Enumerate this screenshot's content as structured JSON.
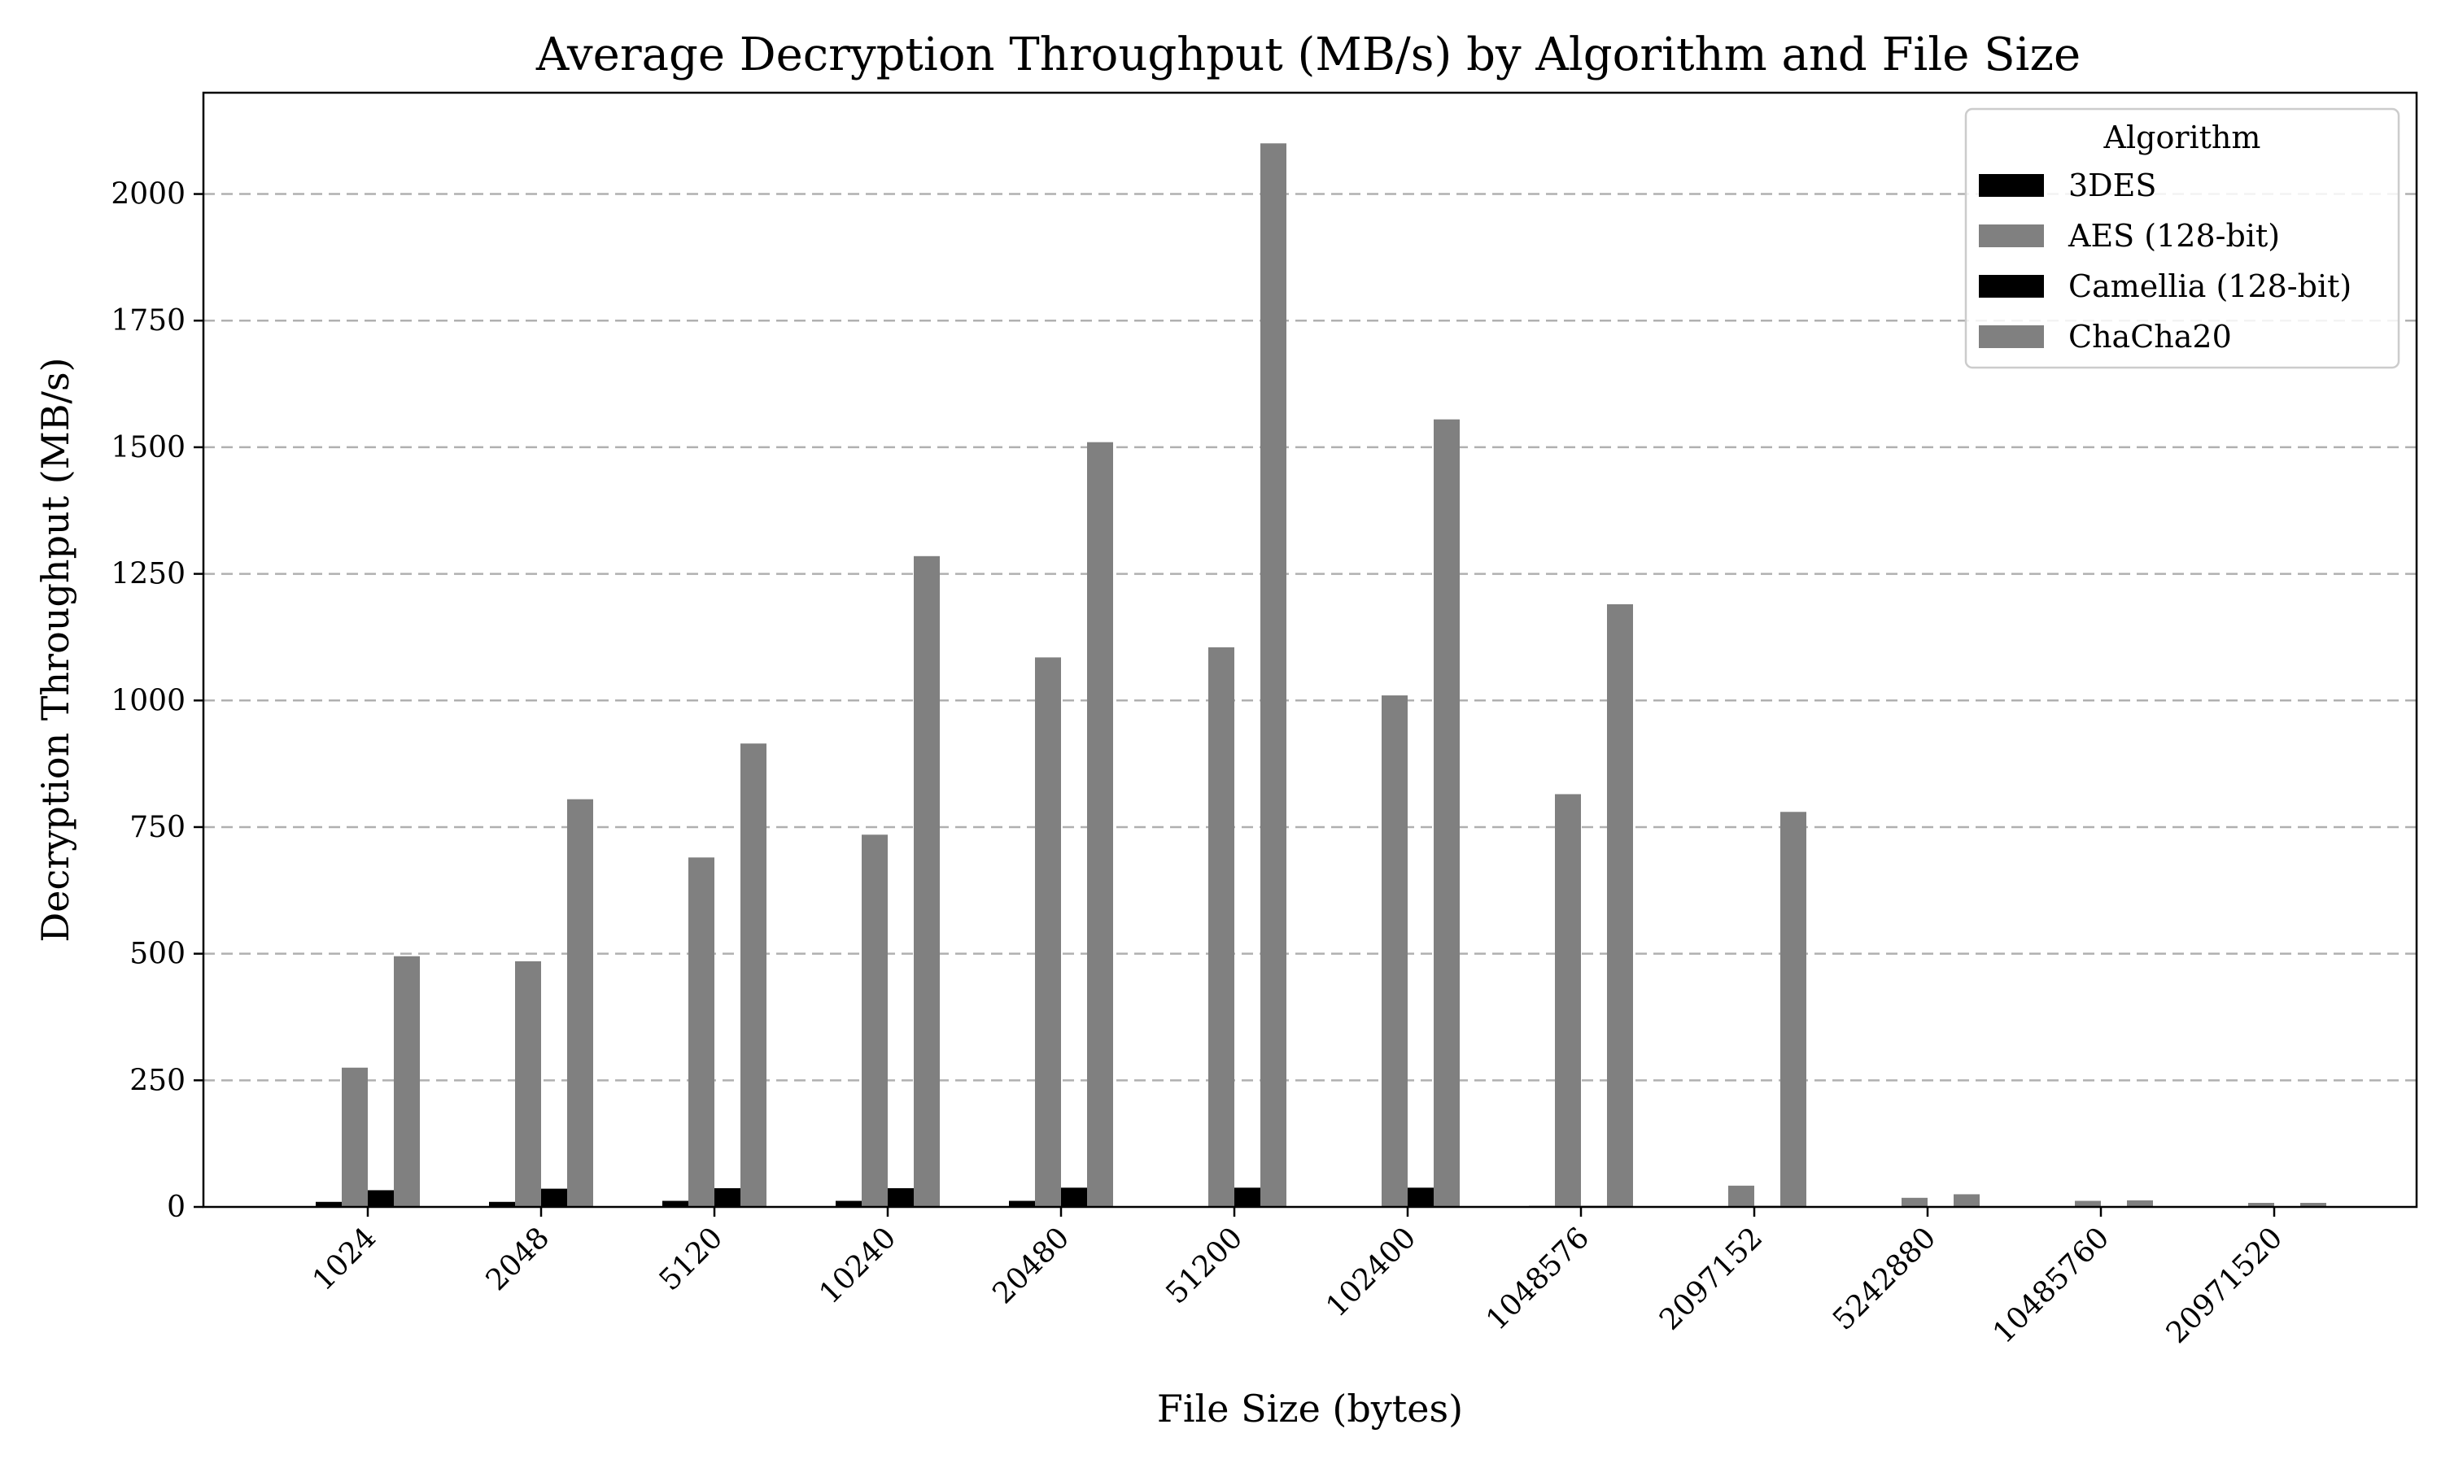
{
  "chart_data": {
    "type": "bar",
    "title": "Average Decryption Throughput (MB/s) by Algorithm and File Size",
    "xlabel": "File Size (bytes)",
    "ylabel": "Decryption Throughput (MB/s)",
    "ylim": [
      0,
      2200
    ],
    "yticks": [
      0,
      250,
      500,
      750,
      1000,
      1250,
      1500,
      1750,
      2000
    ],
    "grid": "y-dashed",
    "legend": {
      "title": "Algorithm",
      "placement": "top-right"
    },
    "categories": [
      "1024",
      "2048",
      "5120",
      "10240",
      "20480",
      "51200",
      "102400",
      "1048576",
      "2097152",
      "5242880",
      "10485760",
      "20971520"
    ],
    "series": [
      {
        "name": "3DES",
        "color": "#000000",
        "values": [
          10,
          10,
          12,
          12,
          12,
          0,
          0,
          2,
          0,
          0,
          0,
          1
        ]
      },
      {
        "name": "AES (128-bit)",
        "color": "#808080",
        "values": [
          275,
          485,
          690,
          735,
          1085,
          1105,
          1010,
          815,
          42,
          18,
          12,
          8
        ]
      },
      {
        "name": "Camellia (128-bit)",
        "color": "#000000",
        "values": [
          33,
          36,
          37,
          37,
          38,
          38,
          38,
          2,
          2,
          0,
          0,
          1
        ]
      },
      {
        "name": "ChaCha20",
        "color": "#808080",
        "values": [
          495,
          805,
          915,
          1285,
          1510,
          2100,
          1555,
          1190,
          780,
          25,
          13,
          8
        ]
      }
    ]
  }
}
